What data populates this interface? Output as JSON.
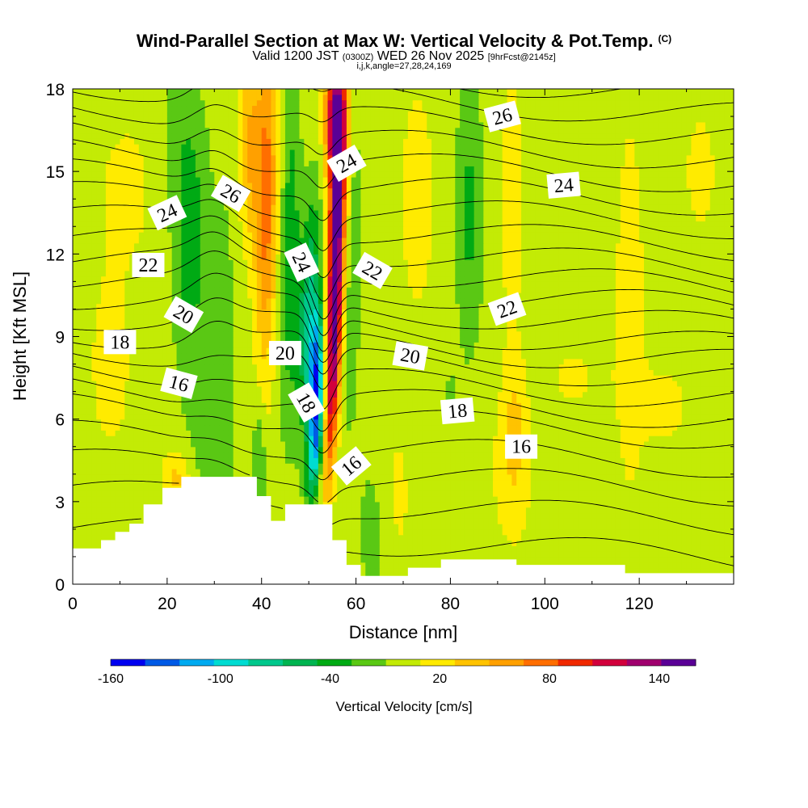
{
  "title": {
    "main": "Wind-Parallel Section at Max W: Vertical Velocity & Pot.Temp.",
    "mark": "(C)",
    "valid_prefix": "Valid 1200 JST",
    "valid_utc": "(0300Z)",
    "valid_date": "WED 26 Nov 2025",
    "forecast": "[9hrFcst@2145z]",
    "indices": "i,j,k,angle=27,28,24,169"
  },
  "chart_data": {
    "type": "heatmap",
    "title": "Wind-Parallel Section at Max W: Vertical Velocity & Pot.Temp.",
    "xlabel": "Distance [nm]",
    "ylabel": "Height [Kft MSL]",
    "xlim": [
      0,
      140
    ],
    "ylim": [
      0,
      18
    ],
    "x_ticks": [
      0,
      20,
      40,
      60,
      80,
      100,
      120
    ],
    "y_ticks": [
      0,
      3,
      6,
      9,
      12,
      15,
      18
    ],
    "colorbar": {
      "title": "Vertical Velocity [cm/s]",
      "tick_labels": [
        "-160",
        "-100",
        "-40",
        "20",
        "80",
        "140"
      ],
      "tick_values": [
        -160,
        -100,
        -40,
        20,
        80,
        140
      ],
      "levels": [
        -160,
        -140,
        -120,
        -100,
        -80,
        -60,
        -40,
        -20,
        0,
        20,
        40,
        60,
        80,
        100,
        120,
        140,
        160
      ],
      "colors": [
        "#0000f0",
        "#005ae6",
        "#00aaf0",
        "#00dcd2",
        "#00c88c",
        "#00b450",
        "#00aa14",
        "#5ac814",
        "#c3eb05",
        "#ffeb00",
        "#ffc300",
        "#ffa000",
        "#ff6e00",
        "#f02800",
        "#d2003c",
        "#a0006e",
        "#5a0096"
      ]
    },
    "background_velocity_cm_s": 10,
    "velocity_features": [
      {
        "x": 56,
        "y": 13,
        "sx": 1.4,
        "sy": 3.8,
        "shear": 0.2,
        "amp": 170
      },
      {
        "x": 55,
        "y": 7,
        "sx": 1.0,
        "sy": 2.6,
        "shear": 0.25,
        "amp": 90
      },
      {
        "x": 55.5,
        "y": 17,
        "sx": 1.5,
        "sy": 1.5,
        "shear": 0,
        "amp": 130
      },
      {
        "x": 58.5,
        "y": 13,
        "sx": 1.7,
        "sy": 5.0,
        "shear": 0,
        "amp": -30
      },
      {
        "x": 50,
        "y": 10,
        "sx": 1.6,
        "sy": 2.8,
        "shear": 0.25,
        "amp": -75
      },
      {
        "x": 51.5,
        "y": 7.5,
        "sx": 1.1,
        "sy": 1.8,
        "shear": 0.25,
        "amp": -130
      },
      {
        "x": 51.5,
        "y": 5,
        "sx": 1.0,
        "sy": 1.4,
        "shear": 0.5,
        "amp": -85
      },
      {
        "x": 46,
        "y": 12,
        "sx": 1.4,
        "sy": 4.2,
        "shear": 0.1,
        "amp": -45
      },
      {
        "x": 41,
        "y": 14,
        "sx": 1.6,
        "sy": 4.2,
        "shear": 0.05,
        "amp": 80
      },
      {
        "x": 37.5,
        "y": 16,
        "sx": 1.6,
        "sy": 2.5,
        "shear": 0,
        "amp": 50
      },
      {
        "x": 25,
        "y": 12,
        "sx": 2.5,
        "sy": 3.5,
        "shear": 0,
        "amp": -40
      },
      {
        "x": 22,
        "y": 16,
        "sx": 3.5,
        "sy": 2.2,
        "shear": 0,
        "amp": -15
      },
      {
        "x": 32,
        "y": 10,
        "sx": 2.0,
        "sy": 4.0,
        "shear": 0,
        "amp": -15
      },
      {
        "x": 39.5,
        "y": 4.5,
        "sx": 1.0,
        "sy": 1.6,
        "shear": 0,
        "amp": -30
      },
      {
        "x": 30,
        "y": 5,
        "sx": 3.0,
        "sy": 2.0,
        "shear": 0,
        "amp": -20
      },
      {
        "x": 22,
        "y": 3.9,
        "sx": 2.0,
        "sy": 0.7,
        "shear": 0,
        "amp": 35
      },
      {
        "x": 8,
        "y": 8,
        "sx": 4.0,
        "sy": 3.0,
        "shear": 0,
        "amp": 15
      },
      {
        "x": 12,
        "y": 14.5,
        "sx": 5.0,
        "sy": 2.0,
        "shear": 0,
        "amp": 15
      },
      {
        "x": 64,
        "y": 2,
        "sx": 2.5,
        "sy": 2.2,
        "shear": 0,
        "amp": -20
      },
      {
        "x": 73,
        "y": 14,
        "sx": 3.5,
        "sy": 4.0,
        "shear": 0,
        "amp": 15
      },
      {
        "x": 68,
        "y": 3,
        "sx": 3.0,
        "sy": 2.5,
        "shear": 0,
        "amp": 15
      },
      {
        "x": 84,
        "y": 13.5,
        "sx": 2.0,
        "sy": 3.5,
        "shear": 0,
        "amp": -35
      },
      {
        "x": 93,
        "y": 14,
        "sx": 2.5,
        "sy": 4.5,
        "shear": 0,
        "amp": 15
      },
      {
        "x": 93.5,
        "y": 5.5,
        "sx": 1.3,
        "sy": 1.5,
        "shear": 0,
        "amp": 30
      },
      {
        "x": 93,
        "y": 4,
        "sx": 4.0,
        "sy": 2.5,
        "shear": 0,
        "amp": 15
      },
      {
        "x": 80,
        "y": 7,
        "sx": 0.8,
        "sy": 0.7,
        "shear": 0,
        "amp": -15
      },
      {
        "x": 118,
        "y": 10,
        "sx": 3.0,
        "sy": 7.0,
        "shear": 0,
        "amp": 15
      },
      {
        "x": 133,
        "y": 15,
        "sx": 3.0,
        "sy": 2.0,
        "shear": 0,
        "amp": 15
      },
      {
        "x": 126,
        "y": 6.5,
        "sx": 3.5,
        "sy": 1.2,
        "shear": 0,
        "amp": 15
      },
      {
        "x": 106,
        "y": 7.5,
        "sx": 5.0,
        "sy": 1.2,
        "shear": 0,
        "amp": 12
      }
    ],
    "terrain": [
      [
        0,
        1.3
      ],
      [
        6,
        1.6
      ],
      [
        9,
        1.9
      ],
      [
        12,
        2.2
      ],
      [
        15,
        2.9
      ],
      [
        19,
        3.5
      ],
      [
        23,
        3.9
      ],
      [
        39,
        3.2
      ],
      [
        42,
        2.3
      ],
      [
        45,
        2.9
      ],
      [
        55,
        1.6
      ],
      [
        58,
        0.7
      ],
      [
        61,
        0.3
      ],
      [
        71,
        0.6
      ],
      [
        78,
        0.9
      ],
      [
        94,
        0.7
      ],
      [
        117,
        0.4
      ],
      [
        140,
        0.4
      ]
    ],
    "theta_contours": {
      "unit": "C",
      "base_levels_kft": [
        1.5,
        2.8,
        3.9,
        4.9,
        5.9,
        6.6,
        7.3,
        8.0,
        8.6,
        9.2,
        9.9,
        10.6,
        11.3,
        12.0,
        12.8,
        13.6,
        14.4,
        15.2,
        16.0,
        16.8,
        17.6,
        18.4
      ],
      "labels": [
        {
          "text": "16",
          "x": 22.5,
          "y": 7.3,
          "angle": 15
        },
        {
          "text": "18",
          "x": 10,
          "y": 8.8,
          "angle": 0
        },
        {
          "text": "20",
          "x": 23.5,
          "y": 9.8,
          "angle": 30
        },
        {
          "text": "22",
          "x": 16,
          "y": 11.6,
          "angle": 0
        },
        {
          "text": "24",
          "x": 20,
          "y": 13.5,
          "angle": -25
        },
        {
          "text": "26",
          "x": 33.5,
          "y": 14.2,
          "angle": 30
        },
        {
          "text": "24",
          "x": 48.5,
          "y": 11.7,
          "angle": 65
        },
        {
          "text": "20",
          "x": 45,
          "y": 8.4,
          "angle": 0
        },
        {
          "text": "18",
          "x": 49.5,
          "y": 6.6,
          "angle": 60
        },
        {
          "text": "16",
          "x": 59,
          "y": 4.3,
          "angle": -40
        },
        {
          "text": "24",
          "x": 58,
          "y": 15.3,
          "angle": -30
        },
        {
          "text": "22",
          "x": 63.5,
          "y": 11.4,
          "angle": 30
        },
        {
          "text": "20",
          "x": 71.5,
          "y": 8.3,
          "angle": 10
        },
        {
          "text": "18",
          "x": 81.5,
          "y": 6.3,
          "angle": -5
        },
        {
          "text": "16",
          "x": 95,
          "y": 5,
          "angle": 0
        },
        {
          "text": "22",
          "x": 92,
          "y": 10,
          "angle": -20
        },
        {
          "text": "24",
          "x": 104,
          "y": 14.5,
          "angle": -5
        },
        {
          "text": "26",
          "x": 91,
          "y": 17,
          "angle": -15
        }
      ]
    }
  }
}
